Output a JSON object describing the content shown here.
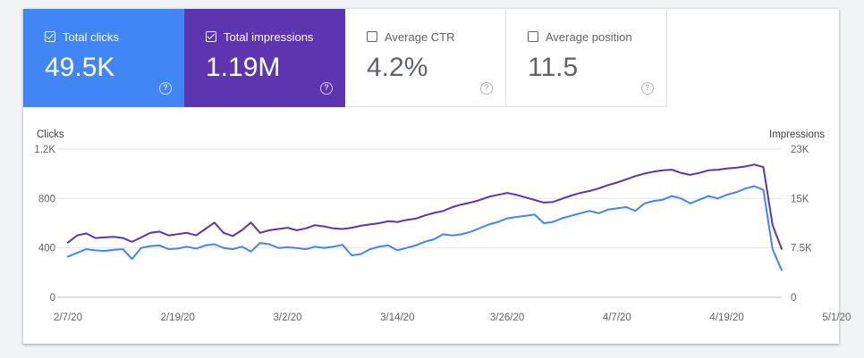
{
  "metrics": [
    {
      "label": "Total clicks",
      "value": "49.5K",
      "checked": true,
      "color": "#4285f4"
    },
    {
      "label": "Total impressions",
      "value": "1.19M",
      "checked": true,
      "color": "#5e35b1"
    },
    {
      "label": "Average CTR",
      "value": "4.2%",
      "checked": false,
      "color": "#ffffff"
    },
    {
      "label": "Average position",
      "value": "11.5",
      "checked": false,
      "color": "#ffffff"
    }
  ],
  "help_glyph": "?",
  "chart_data": {
    "type": "line",
    "ylabel": "Clicks",
    "y2label": "Impressions",
    "ylim": [
      0,
      1200
    ],
    "y2lim": [
      0,
      23000
    ],
    "yticks": [
      "0",
      "400",
      "800",
      "1.2K"
    ],
    "y2ticks": [
      "0",
      "7.5K",
      "15K",
      "23K"
    ],
    "xtick_labels": [
      "2/7/20",
      "2/19/20",
      "3/2/20",
      "3/14/20",
      "3/26/20",
      "4/7/20",
      "4/19/20",
      "5/1/20"
    ],
    "grid": true,
    "x_start": "2/7/20",
    "series": [
      {
        "name": "Clicks",
        "axis": "left",
        "color": "#4285f4",
        "values": [
          330,
          360,
          390,
          380,
          375,
          385,
          390,
          310,
          400,
          415,
          420,
          390,
          395,
          410,
          395,
          420,
          430,
          400,
          390,
          410,
          370,
          440,
          430,
          400,
          405,
          400,
          390,
          410,
          400,
          410,
          425,
          340,
          350,
          390,
          410,
          420,
          380,
          400,
          420,
          450,
          470,
          510,
          500,
          510,
          530,
          560,
          590,
          610,
          640,
          650,
          660,
          670,
          600,
          610,
          640,
          660,
          680,
          700,
          680,
          710,
          720,
          730,
          700,
          760,
          780,
          790,
          820,
          800,
          760,
          790,
          820,
          800,
          830,
          850,
          880,
          900,
          870,
          390,
          220
        ]
      },
      {
        "name": "Impressions",
        "axis": "right",
        "color": "#5e35b1",
        "values": [
          8500,
          9600,
          9900,
          9200,
          9300,
          9400,
          9200,
          8600,
          9300,
          10000,
          10200,
          9600,
          9800,
          10000,
          9600,
          10600,
          11600,
          10000,
          9500,
          10400,
          11600,
          10000,
          10400,
          10600,
          10800,
          10400,
          10700,
          11200,
          11000,
          10700,
          10600,
          10800,
          11100,
          11300,
          11500,
          11800,
          11700,
          12000,
          12200,
          12700,
          13100,
          13400,
          14000,
          14400,
          14700,
          15100,
          15600,
          15900,
          16200,
          15900,
          15500,
          15100,
          14700,
          14800,
          15300,
          15800,
          16200,
          16500,
          16900,
          17400,
          17800,
          18300,
          18800,
          19200,
          19500,
          19700,
          19800,
          19300,
          19000,
          19300,
          19700,
          19800,
          20000,
          20100,
          20300,
          20600,
          20200,
          11200,
          7500
        ]
      }
    ]
  }
}
